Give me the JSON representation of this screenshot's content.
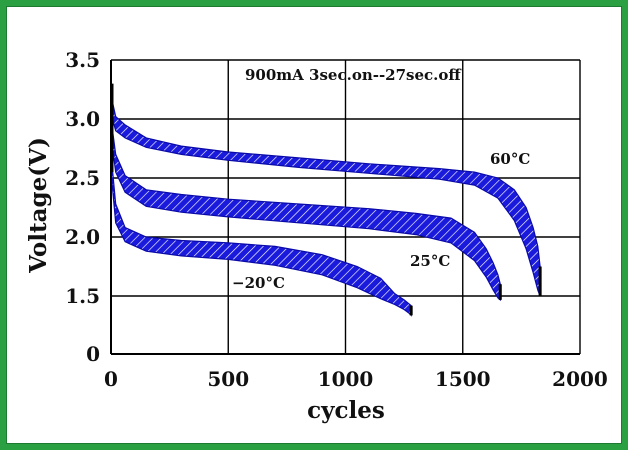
{
  "chart_data": {
    "type": "area",
    "title": "900mA  3sec.on--27sec.off",
    "xlabel": "cycles",
    "ylabel": "Voltage(V)",
    "xlim": [
      0,
      2000
    ],
    "x_ticks": [
      "0",
      "500",
      "1000",
      "1500",
      "2000"
    ],
    "y_ticks": [
      "0",
      "1.5",
      "2.0",
      "2.5",
      "3.0",
      "3.5"
    ],
    "grid": true,
    "series": [
      {
        "name": "60°C",
        "color": "#1a1adc",
        "x": [
          0,
          20,
          60,
          150,
          300,
          500,
          800,
          1100,
          1400,
          1550,
          1650,
          1720,
          1770,
          1800,
          1820,
          1830
        ],
        "upper": [
          3.2,
          3.02,
          2.95,
          2.84,
          2.77,
          2.72,
          2.67,
          2.62,
          2.58,
          2.55,
          2.5,
          2.4,
          2.25,
          2.08,
          1.92,
          1.75
        ],
        "lower": [
          3.05,
          2.9,
          2.84,
          2.76,
          2.7,
          2.65,
          2.59,
          2.54,
          2.49,
          2.44,
          2.33,
          2.14,
          1.9,
          1.7,
          1.55,
          1.5
        ]
      },
      {
        "name": "25°C",
        "color": "#1a1adc",
        "x": [
          0,
          20,
          60,
          150,
          300,
          500,
          800,
          1100,
          1300,
          1450,
          1550,
          1600,
          1630,
          1650,
          1660
        ],
        "upper": [
          3.0,
          2.7,
          2.52,
          2.4,
          2.36,
          2.32,
          2.28,
          2.24,
          2.2,
          2.16,
          2.04,
          1.9,
          1.78,
          1.68,
          1.6
        ],
        "lower": [
          2.85,
          2.55,
          2.38,
          2.26,
          2.21,
          2.17,
          2.12,
          2.07,
          2.02,
          1.95,
          1.8,
          1.66,
          1.55,
          1.45,
          1.4
        ]
      },
      {
        "name": "−20°C",
        "color": "#1a1adc",
        "x": [
          0,
          20,
          60,
          150,
          300,
          500,
          700,
          900,
          1050,
          1150,
          1210,
          1250,
          1270,
          1280
        ],
        "upper": [
          2.7,
          2.28,
          2.08,
          2.0,
          1.97,
          1.95,
          1.92,
          1.85,
          1.75,
          1.65,
          1.52,
          1.4,
          1.3,
          1.25
        ],
        "lower": [
          2.55,
          2.12,
          1.96,
          1.88,
          1.84,
          1.81,
          1.76,
          1.68,
          1.57,
          1.43,
          1.28,
          1.15,
          1.06,
          1.0
        ]
      }
    ],
    "annotations": [
      "60°C",
      "25°C",
      "−20°C"
    ]
  }
}
